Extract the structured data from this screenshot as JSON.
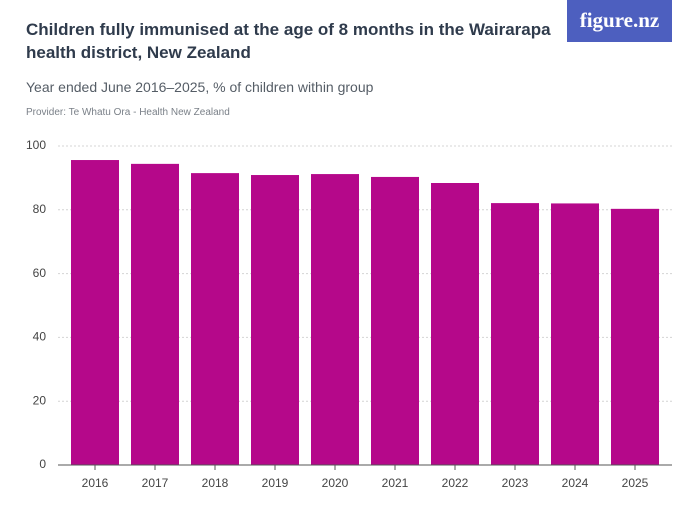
{
  "chart_data": {
    "type": "bar",
    "title": "Children fully immunised at the age of 8 months in the Wairarapa health district, New Zealand",
    "subtitle": "Year ended June 2016–2025, % of children within group",
    "provider": "Provider: Te Whatu Ora - Health New Zealand",
    "logo": "figure.nz",
    "categories": [
      "2016",
      "2017",
      "2018",
      "2019",
      "2020",
      "2021",
      "2022",
      "2023",
      "2024",
      "2025"
    ],
    "values": [
      95.6,
      94.4,
      91.5,
      90.9,
      91.2,
      90.3,
      88.4,
      82.1,
      82.0,
      80.3
    ],
    "color": "#b5088a",
    "ylim": [
      0,
      100
    ],
    "yticks": [
      0,
      20,
      40,
      60,
      80,
      100
    ],
    "grid": true
  }
}
